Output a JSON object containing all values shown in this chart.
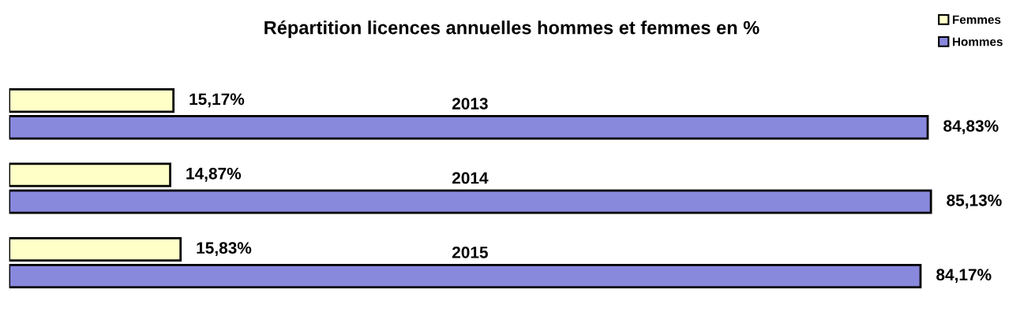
{
  "chart_data": {
    "type": "bar",
    "orientation": "horizontal",
    "title": "Répartition licences annuelles hommes et femmes en %",
    "categories": [
      "2013",
      "2014",
      "2015"
    ],
    "series": [
      {
        "name": "Femmes",
        "color": "#ffffc8",
        "values": [
          15.17,
          14.87,
          15.83
        ],
        "value_labels": [
          "15,17%",
          "14,87%",
          "15,83%"
        ]
      },
      {
        "name": "Hommes",
        "color": "#8888dd",
        "values": [
          84.83,
          85.13,
          84.17
        ],
        "value_labels": [
          "84,83%",
          "85,13%",
          "84,17%"
        ]
      }
    ],
    "legend": "top right",
    "grid": false,
    "tick_labels": false
  }
}
